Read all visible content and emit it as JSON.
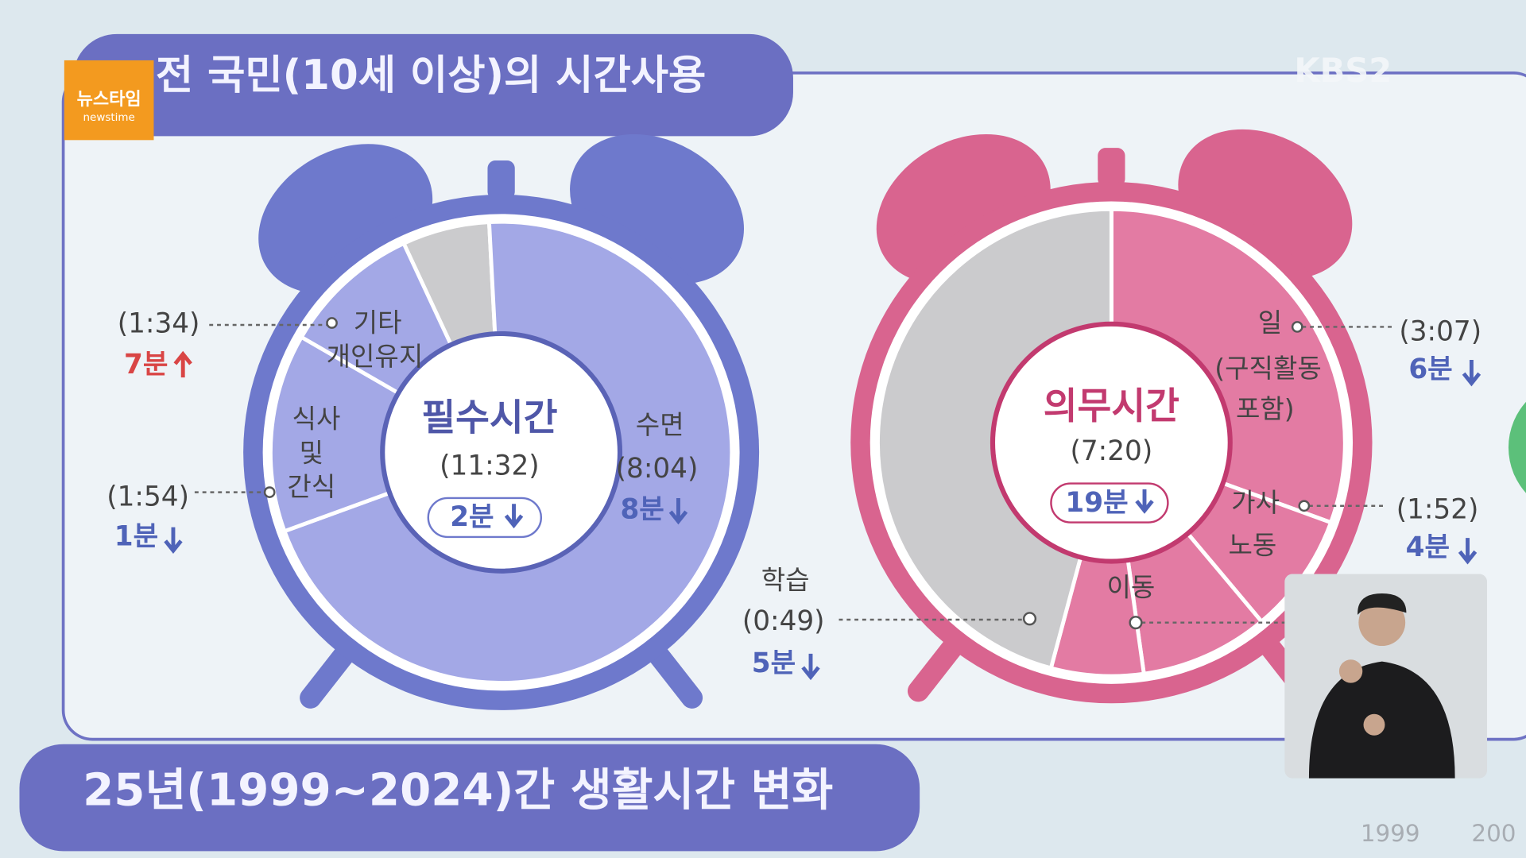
{
  "logo": {
    "name": "뉴스타임",
    "sub": "newstime"
  },
  "broadcaster": "KBS2",
  "section1": {
    "title": "전 국민(10세 이상)의 시간사용"
  },
  "clocks": [
    {
      "title": "필수시간",
      "total": "(11:32)",
      "change": "2분",
      "items": [
        {
          "label": [
            "수면"
          ],
          "time": "(8:04)",
          "change": "8분"
        },
        {
          "label": [
            "식사",
            "및",
            "간식"
          ],
          "time": "(1:54)",
          "change": "1분"
        },
        {
          "label": [
            "기타",
            "개인유지"
          ],
          "time": "(1:34)",
          "change": "7분"
        }
      ]
    },
    {
      "title": "의무시간",
      "total": "(7:20)",
      "change": "19분",
      "items": [
        {
          "label": [
            "일",
            "(구직활동",
            "포함)"
          ],
          "time": "(3:07)",
          "change": "6분"
        },
        {
          "label": [
            "가사",
            "노동"
          ],
          "time": "(1:52)",
          "change": "4분"
        },
        {
          "label": [
            "학습"
          ],
          "time": "(0:49)",
          "change": "5분"
        },
        {
          "label": [
            "이동"
          ]
        }
      ]
    }
  ],
  "section2": {
    "title": "25년(1999~2024)간 생활시간 변화",
    "legend": [
      "1999",
      "200"
    ]
  }
}
